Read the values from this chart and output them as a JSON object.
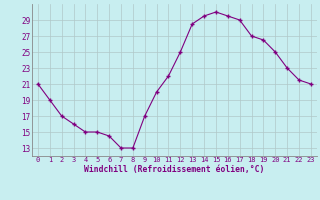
{
  "x": [
    0,
    1,
    2,
    3,
    4,
    5,
    6,
    7,
    8,
    9,
    10,
    11,
    12,
    13,
    14,
    15,
    16,
    17,
    18,
    19,
    20,
    21,
    22,
    23
  ],
  "y": [
    21,
    19,
    17,
    16,
    15,
    15,
    14.5,
    13,
    13,
    17,
    20,
    22,
    25,
    28.5,
    29.5,
    30,
    29.5,
    29,
    27,
    26.5,
    25,
    23,
    21.5,
    21
  ],
  "line_color": "#800080",
  "marker": "+",
  "marker_color": "#800080",
  "bg_color": "#c8eef0",
  "grid_color": "#b0c8c8",
  "xlabel": "Windchill (Refroidissement éolien,°C)",
  "xlabel_color": "#800080",
  "tick_color": "#800080",
  "xlim": [
    -0.5,
    23.5
  ],
  "ylim": [
    12,
    31
  ],
  "yticks": [
    13,
    15,
    17,
    19,
    21,
    23,
    25,
    27,
    29
  ],
  "xticks": [
    0,
    1,
    2,
    3,
    4,
    5,
    6,
    7,
    8,
    9,
    10,
    11,
    12,
    13,
    14,
    15,
    16,
    17,
    18,
    19,
    20,
    21,
    22,
    23
  ],
  "figsize": [
    3.2,
    2.0
  ],
  "dpi": 100
}
